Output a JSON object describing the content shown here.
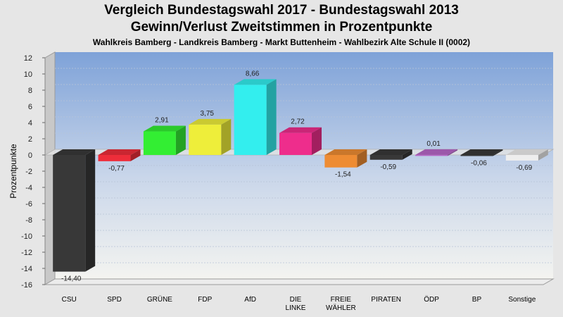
{
  "header": {
    "title_line1": "Vergleich Bundestagswahl 2017 - Bundestagswahl 2013",
    "title_line2": "Gewinn/Verlust Zweitstimmen in Prozentpunkte",
    "subtitle": "Wahlkreis Bamberg - Landkreis Bamberg - Markt Buttenheim - Wahlbezirk Alte Schule II (0002)"
  },
  "chart_data": {
    "type": "bar",
    "title": "Vergleich Bundestagswahl 2017 - Bundestagswahl 2013 / Gewinn/Verlust Zweitstimmen in Prozentpunkte",
    "subtitle": "Wahlkreis Bamberg - Landkreis Bamberg - Markt Buttenheim - Wahlbezirk Alte Schule II (0002)",
    "ylabel": "Prozentpunkte",
    "xlabel": "",
    "ylim": [
      -16,
      12
    ],
    "yticks": [
      12,
      10,
      8,
      6,
      4,
      2,
      0,
      -2,
      -4,
      -6,
      -8,
      -10,
      -12,
      -14,
      -16
    ],
    "grid": true,
    "categories": [
      [
        "CSU"
      ],
      [
        "SPD"
      ],
      [
        "GRÜNE"
      ],
      [
        "FDP"
      ],
      [
        "AfD"
      ],
      [
        "DIE",
        "LINKE"
      ],
      [
        "FREIE",
        "WÄHLER"
      ],
      [
        "PIRATEN"
      ],
      [
        "ÖDP"
      ],
      [
        "BP"
      ],
      [
        "Sonstige"
      ]
    ],
    "values": [
      -14.4,
      -0.77,
      2.91,
      3.75,
      8.66,
      2.72,
      -1.54,
      -0.59,
      0.01,
      -0.06,
      -0.69
    ],
    "labels": [
      "-14,40",
      "-0,77",
      "2,91",
      "3,75",
      "8,66",
      "2,72",
      "-1,54",
      "-0,59",
      "0,01",
      "-0,06",
      "-0,69"
    ],
    "colors": [
      "#383838",
      "#ee2d3a",
      "#33ee33",
      "#eeee3a",
      "#33eeee",
      "#ee2d8c",
      "#ee8c33",
      "#383838",
      "#b766c8",
      "#383838",
      "#eeeeee"
    ]
  }
}
